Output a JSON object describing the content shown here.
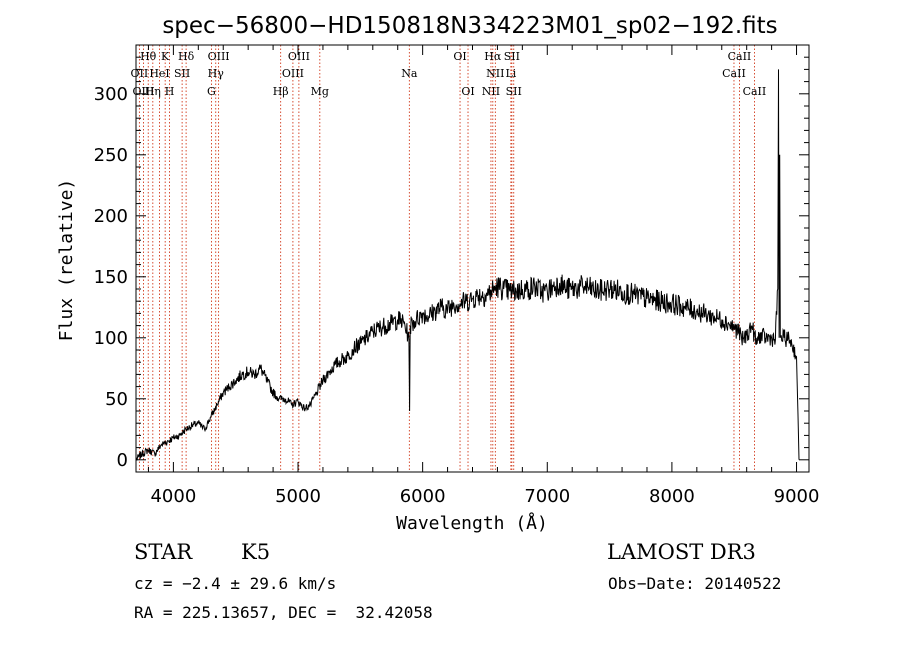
{
  "chart_data": {
    "type": "line",
    "title": "spec−56800−HD150818N334223M01_sp02−192.fits",
    "xlabel": "Wavelength (Å)",
    "ylabel": "Flux (relative)",
    "xlim": [
      3700,
      9100
    ],
    "ylim": [
      -10,
      340
    ],
    "xticks": [
      4000,
      5000,
      6000,
      7000,
      8000,
      9000
    ],
    "yticks": [
      0,
      50,
      100,
      150,
      200,
      250,
      300
    ],
    "series": [
      {
        "name": "spectrum",
        "x": [
          3700,
          3750,
          3800,
          3850,
          3900,
          3950,
          4000,
          4050,
          4100,
          4150,
          4200,
          4250,
          4300,
          4350,
          4400,
          4450,
          4500,
          4550,
          4600,
          4650,
          4700,
          4750,
          4800,
          4850,
          4900,
          4950,
          5000,
          5050,
          5100,
          5150,
          5200,
          5250,
          5300,
          5350,
          5400,
          5450,
          5500,
          5550,
          5600,
          5650,
          5700,
          5750,
          5800,
          5850,
          5890,
          5895,
          5900,
          5950,
          6000,
          6050,
          6100,
          6150,
          6200,
          6250,
          6300,
          6350,
          6400,
          6450,
          6500,
          6550,
          6600,
          6650,
          6700,
          6750,
          6800,
          6850,
          6900,
          6950,
          7000,
          7050,
          7100,
          7150,
          7200,
          7300,
          7400,
          7500,
          7600,
          7700,
          7800,
          7900,
          8000,
          8100,
          8200,
          8300,
          8400,
          8450,
          8500,
          8540,
          8560,
          8600,
          8640,
          8680,
          8700,
          8750,
          8800,
          8830,
          8850,
          8855,
          8860,
          8865,
          8870,
          8900,
          8950,
          9000,
          9020
        ],
        "y": [
          0,
          5,
          8,
          5,
          12,
          15,
          18,
          20,
          25,
          28,
          30,
          25,
          35,
          45,
          55,
          60,
          65,
          70,
          72,
          70,
          75,
          65,
          55,
          50,
          50,
          45,
          48,
          42,
          45,
          55,
          65,
          72,
          78,
          82,
          85,
          92,
          95,
          100,
          105,
          108,
          110,
          112,
          115,
          112,
          100,
          40,
          110,
          115,
          120,
          118,
          122,
          125,
          123,
          128,
          128,
          130,
          132,
          135,
          135,
          138,
          142,
          140,
          138,
          138,
          140,
          140,
          142,
          138,
          138,
          142,
          145,
          140,
          140,
          142,
          138,
          140,
          138,
          135,
          132,
          130,
          128,
          125,
          122,
          118,
          115,
          112,
          108,
          105,
          98,
          102,
          110,
          95,
          102,
          100,
          100,
          98,
          140,
          320,
          100,
          250,
          100,
          100,
          98,
          85,
          0
        ]
      }
    ],
    "lines": [
      {
        "label": "Hθ",
        "wl": 3798,
        "row": 0
      },
      {
        "label": "K",
        "wl": 3934,
        "row": 0
      },
      {
        "label": "Hδ",
        "wl": 4102,
        "row": 0
      },
      {
        "label": "OIII",
        "wl": 4363,
        "row": 0
      },
      {
        "label": "OIII",
        "wl": 5007,
        "row": 0
      },
      {
        "label": "OI",
        "wl": 6300,
        "row": 0
      },
      {
        "label": "Hα",
        "wl": 6563,
        "row": 0
      },
      {
        "label": "SII",
        "wl": 6716,
        "row": 0
      },
      {
        "label": "CaII",
        "wl": 8542,
        "row": 0
      },
      {
        "label": "OII",
        "wl": 3727,
        "row": 1
      },
      {
        "label": "HeI",
        "wl": 3889,
        "row": 1
      },
      {
        "label": "SII",
        "wl": 4070,
        "row": 1
      },
      {
        "label": "Hγ",
        "wl": 4340,
        "row": 1
      },
      {
        "label": "OIII",
        "wl": 4959,
        "row": 1
      },
      {
        "label": "Na",
        "wl": 5893,
        "row": 1
      },
      {
        "label": "NII",
        "wl": 6583,
        "row": 1
      },
      {
        "label": "Li",
        "wl": 6708,
        "row": 1
      },
      {
        "label": "CaII",
        "wl": 8498,
        "row": 1
      },
      {
        "label": "OIII",
        "wl": 3760,
        "row": 2
      },
      {
        "label": "Hη",
        "wl": 3835,
        "row": 2
      },
      {
        "label": "H",
        "wl": 3969,
        "row": 2
      },
      {
        "label": "G",
        "wl": 4305,
        "row": 2
      },
      {
        "label": "Hβ",
        "wl": 4861,
        "row": 2
      },
      {
        "label": "Mg",
        "wl": 5175,
        "row": 2
      },
      {
        "label": "OI",
        "wl": 6364,
        "row": 2
      },
      {
        "label": "NII",
        "wl": 6548,
        "row": 2
      },
      {
        "label": "SII",
        "wl": 6731,
        "row": 2
      },
      {
        "label": "CaII",
        "wl": 8662,
        "row": 2
      }
    ],
    "colors": {
      "axes": "#000000",
      "spectrum": "#000000",
      "line_markers": "#cc2200"
    }
  },
  "info": {
    "object_class": "STAR",
    "subclass": "K5",
    "survey": "LAMOST DR3",
    "redshift": "cz = −2.4 ± 29.6 km/s",
    "obs_date": "Obs−Date: 20140522",
    "coords": "RA = 225.13657, DEC =  32.42058"
  }
}
